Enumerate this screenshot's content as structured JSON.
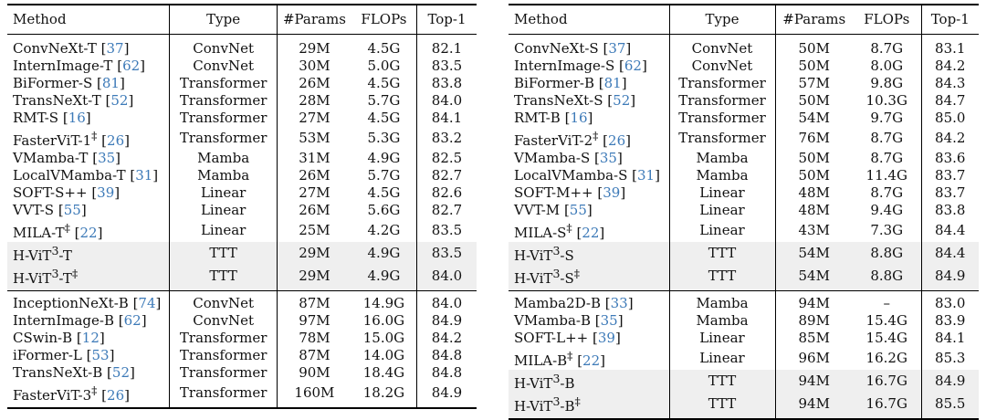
{
  "left": {
    "headers": [
      "Method",
      "Type",
      "#Params",
      "FLOPs",
      "Top-1"
    ],
    "groups": [
      [
        {
          "name": "ConvNeXt-T",
          "cite": "37",
          "type": "ConvNet",
          "params": "29M",
          "flops": "4.5G",
          "top1": "82.1"
        },
        {
          "name": "InternImage-T",
          "cite": "62",
          "type": "ConvNet",
          "params": "30M",
          "flops": "5.0G",
          "top1": "83.5"
        },
        {
          "name": "BiFormer-S",
          "cite": "81",
          "type": "Transformer",
          "params": "26M",
          "flops": "4.5G",
          "top1": "83.8"
        },
        {
          "name": "TransNeXt-T",
          "cite": "52",
          "type": "Transformer",
          "params": "28M",
          "flops": "5.7G",
          "top1": "84.0"
        },
        {
          "name": "RMT-S",
          "cite": "16",
          "type": "Transformer",
          "params": "27M",
          "flops": "4.5G",
          "top1": "84.1"
        },
        {
          "name": "FasterViT-1",
          "sup": "‡",
          "cite": "26",
          "type": "Transformer",
          "params": "53M",
          "flops": "5.3G",
          "top1": "83.2"
        },
        {
          "name": "VMamba-T",
          "cite": "35",
          "type": "Mamba",
          "params": "31M",
          "flops": "4.9G",
          "top1": "82.5"
        },
        {
          "name": "LocalVMamba-T",
          "cite": "31",
          "type": "Mamba",
          "params": "26M",
          "flops": "5.7G",
          "top1": "82.7"
        },
        {
          "name": "SOFT-S++",
          "cite": "39",
          "type": "Linear",
          "params": "27M",
          "flops": "4.5G",
          "top1": "82.6"
        },
        {
          "name": "VVT-S",
          "cite": "55",
          "type": "Linear",
          "params": "26M",
          "flops": "5.6G",
          "top1": "82.7"
        },
        {
          "name": "MILA-T",
          "sup": "‡",
          "cite": "22",
          "type": "Linear",
          "params": "25M",
          "flops": "4.2G",
          "top1": "83.5"
        },
        {
          "name": "H-ViT",
          "nsup": "3",
          "tail": "-T",
          "type": "TTT",
          "params": "29M",
          "flops": "4.9G",
          "top1": "83.5",
          "hl": true
        },
        {
          "name": "H-ViT",
          "nsup": "3",
          "tail": "-T",
          "sup": "‡",
          "type": "TTT",
          "params": "29M",
          "flops": "4.9G",
          "top1": "84.0",
          "hl": true
        }
      ],
      [
        {
          "name": "InceptionNeXt-B",
          "cite": "74",
          "type": "ConvNet",
          "params": "87M",
          "flops": "14.9G",
          "top1": "84.0"
        },
        {
          "name": "InternImage-B",
          "cite": "62",
          "type": "ConvNet",
          "params": "97M",
          "flops": "16.0G",
          "top1": "84.9"
        },
        {
          "name": "CSwin-B",
          "cite": "12",
          "type": "Transformer",
          "params": "78M",
          "flops": "15.0G",
          "top1": "84.2"
        },
        {
          "name": "iFormer-L",
          "cite": "53",
          "type": "Transformer",
          "params": "87M",
          "flops": "14.0G",
          "top1": "84.8"
        },
        {
          "name": "TransNeXt-B",
          "cite": "52",
          "type": "Transformer",
          "params": "90M",
          "flops": "18.4G",
          "top1": "84.8"
        },
        {
          "name": "FasterViT-3",
          "sup": "‡",
          "cite": "26",
          "type": "Transformer",
          "params": "160M",
          "flops": "18.2G",
          "top1": "84.9"
        }
      ]
    ]
  },
  "right": {
    "headers": [
      "Method",
      "Type",
      "#Params",
      "FLOPs",
      "Top-1"
    ],
    "groups": [
      [
        {
          "name": "ConvNeXt-S",
          "cite": "37",
          "type": "ConvNet",
          "params": "50M",
          "flops": "8.7G",
          "top1": "83.1"
        },
        {
          "name": "InternImage-S",
          "cite": "62",
          "type": "ConvNet",
          "params": "50M",
          "flops": "8.0G",
          "top1": "84.2"
        },
        {
          "name": "BiFormer-B",
          "cite": "81",
          "type": "Transformer",
          "params": "57M",
          "flops": "9.8G",
          "top1": "84.3"
        },
        {
          "name": "TransNeXt-S",
          "cite": "52",
          "type": "Transformer",
          "params": "50M",
          "flops": "10.3G",
          "top1": "84.7"
        },
        {
          "name": "RMT-B",
          "cite": "16",
          "type": "Transformer",
          "params": "54M",
          "flops": "9.7G",
          "top1": "85.0"
        },
        {
          "name": "FasterViT-2",
          "sup": "‡",
          "cite": "26",
          "type": "Transformer",
          "params": "76M",
          "flops": "8.7G",
          "top1": "84.2"
        },
        {
          "name": "VMamba-S",
          "cite": "35",
          "type": "Mamba",
          "params": "50M",
          "flops": "8.7G",
          "top1": "83.6"
        },
        {
          "name": "LocalVMamba-S",
          "cite": "31",
          "type": "Mamba",
          "params": "50M",
          "flops": "11.4G",
          "top1": "83.7"
        },
        {
          "name": "SOFT-M++",
          "cite": "39",
          "type": "Linear",
          "params": "48M",
          "flops": "8.7G",
          "top1": "83.7"
        },
        {
          "name": "VVT-M",
          "cite": "55",
          "type": "Linear",
          "params": "48M",
          "flops": "9.4G",
          "top1": "83.8"
        },
        {
          "name": "MILA-S",
          "sup": "‡",
          "cite": "22",
          "type": "Linear",
          "params": "43M",
          "flops": "7.3G",
          "top1": "84.4"
        },
        {
          "name": "H-ViT",
          "nsup": "3",
          "tail": "-S",
          "type": "TTT",
          "params": "54M",
          "flops": "8.8G",
          "top1": "84.4",
          "hl": true
        },
        {
          "name": "H-ViT",
          "nsup": "3",
          "tail": "-S",
          "sup": "‡",
          "type": "TTT",
          "params": "54M",
          "flops": "8.8G",
          "top1": "84.9",
          "hl": true
        }
      ],
      [
        {
          "name": "Mamba2D-B",
          "cite": "33",
          "type": "Mamba",
          "params": "94M",
          "flops": "–",
          "top1": "83.0"
        },
        {
          "name": "VMamba-B",
          "cite": "35",
          "type": "Mamba",
          "params": "89M",
          "flops": "15.4G",
          "top1": "83.9"
        },
        {
          "name": "SOFT-L++",
          "cite": "39",
          "type": "Linear",
          "params": "85M",
          "flops": "15.4G",
          "top1": "84.1"
        },
        {
          "name": "MILA-B",
          "sup": "‡",
          "cite": "22",
          "type": "Linear",
          "params": "96M",
          "flops": "16.2G",
          "top1": "85.3"
        },
        {
          "name": "H-ViT",
          "nsup": "3",
          "tail": "-B",
          "type": "TTT",
          "params": "94M",
          "flops": "16.7G",
          "top1": "84.9",
          "hl": true
        },
        {
          "name": "H-ViT",
          "nsup": "3",
          "tail": "-B",
          "sup": "‡",
          "type": "TTT",
          "params": "94M",
          "flops": "16.7G",
          "top1": "85.5",
          "hl": true
        }
      ]
    ]
  }
}
